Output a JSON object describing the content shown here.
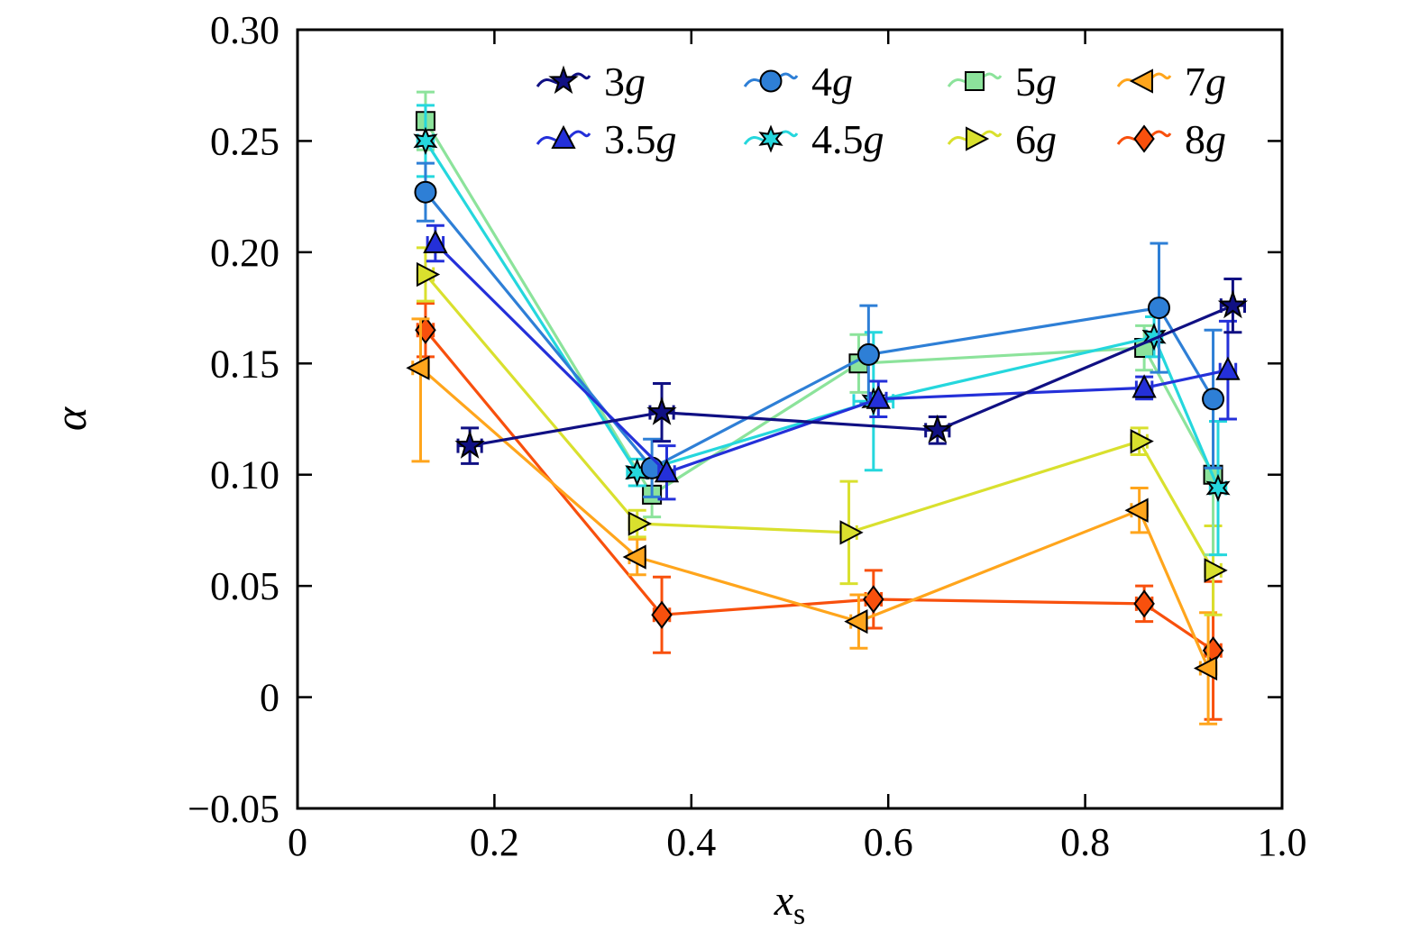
{
  "figure": {
    "background": "#ffffff",
    "frame_color": "#000000"
  },
  "chart_data": {
    "type": "line",
    "title": "",
    "xlabel": {
      "base": "x",
      "subscript": "s"
    },
    "ylabel": "α",
    "xlim": [
      0,
      1.0
    ],
    "ylim": [
      -0.05,
      0.3
    ],
    "grid": false,
    "xticks": {
      "values": [
        0,
        0.2,
        0.4,
        0.6,
        0.8,
        1.0
      ],
      "labels": [
        "0",
        "0.2",
        "0.4",
        "0.6",
        "0.8",
        "1.0"
      ]
    },
    "yticks": {
      "values": [
        -0.05,
        0,
        0.05,
        0.1,
        0.15,
        0.2,
        0.25,
        0.3
      ],
      "labels": [
        "−0.05",
        "0",
        "0.05",
        "0.10",
        "0.15",
        "0.20",
        "0.25",
        "0.30"
      ]
    },
    "legend": {
      "position": "top-inside",
      "rows": [
        [
          "3g",
          "4g",
          "5g",
          "7g"
        ],
        [
          "3.5g",
          "4.5g",
          "6g",
          "8g"
        ]
      ]
    },
    "series": [
      {
        "name": "3g",
        "color": "#101083",
        "marker": "star5",
        "x": [
          0.175,
          0.37,
          0.65,
          0.95
        ],
        "y": [
          0.113,
          0.128,
          0.12,
          0.176
        ],
        "yerr": [
          0.008,
          0.013,
          0.006,
          0.012
        ],
        "xerr": [
          0.012,
          0.012,
          0.012,
          0.012
        ]
      },
      {
        "name": "3.5g",
        "color": "#2430d9",
        "marker": "triangle-up",
        "x": [
          0.14,
          0.375,
          0.59,
          0.86,
          0.945
        ],
        "y": [
          0.204,
          0.101,
          0.134,
          0.139,
          0.147
        ],
        "yerr": [
          0.008,
          0.012,
          0.008,
          0.005,
          0.022
        ],
        "xerr": [
          0.008,
          0.008,
          0.008,
          0.008,
          0.008
        ]
      },
      {
        "name": "4g",
        "color": "#2e7fd6",
        "marker": "circle",
        "x": [
          0.13,
          0.36,
          0.58,
          0.875,
          0.93
        ],
        "y": [
          0.227,
          0.103,
          0.154,
          0.175,
          0.134
        ],
        "yerr": [
          0.013,
          0.013,
          0.022,
          0.029,
          0.031
        ],
        "xerr": [
          0.008,
          0.008,
          0.008,
          0.008,
          0.008
        ]
      },
      {
        "name": "4.5g",
        "color": "#25d7dd",
        "marker": "star6",
        "x": [
          0.13,
          0.345,
          0.585,
          0.87,
          0.935
        ],
        "y": [
          0.25,
          0.101,
          0.133,
          0.162,
          0.094
        ],
        "yerr": [
          0.016,
          0.006,
          0.031,
          0.009,
          0.03
        ],
        "xerr": [
          0.008,
          0.01,
          0.02,
          0.008,
          0.008
        ]
      },
      {
        "name": "5g",
        "color": "#8ce39b",
        "marker": "square",
        "x": [
          0.13,
          0.36,
          0.57,
          0.86,
          0.93
        ],
        "y": [
          0.259,
          0.091,
          0.15,
          0.157,
          0.1
        ],
        "yerr": [
          0.013,
          0.01,
          0.013,
          0.01,
          0.036
        ],
        "xerr": [
          0.008,
          0.008,
          0.008,
          0.008,
          0.008
        ]
      },
      {
        "name": "6g",
        "color": "#d9e02e",
        "marker": "triangle-right",
        "x": [
          0.13,
          0.345,
          0.56,
          0.855,
          0.93
        ],
        "y": [
          0.19,
          0.078,
          0.074,
          0.115,
          0.057
        ],
        "yerr": [
          0.012,
          0.006,
          0.023,
          0.006,
          0.02
        ],
        "xerr": [
          0.008,
          0.008,
          0.008,
          0.008,
          0.008
        ]
      },
      {
        "name": "7g",
        "color": "#ffa51c",
        "marker": "triangle-left",
        "x": [
          0.125,
          0.345,
          0.57,
          0.855,
          0.925
        ],
        "y": [
          0.148,
          0.063,
          0.034,
          0.084,
          0.013
        ],
        "yerr": [
          [
            0.042,
            0.022
          ],
          0.008,
          0.012,
          0.01,
          0.025
        ],
        "xerr": [
          0.008,
          0.008,
          0.008,
          0.008,
          0.008
        ]
      },
      {
        "name": "8g",
        "color": "#f8500d",
        "marker": "diamond",
        "x": [
          0.13,
          0.37,
          0.585,
          0.86,
          0.93
        ],
        "y": [
          0.165,
          0.037,
          0.044,
          0.042,
          0.021
        ],
        "yerr": [
          0.012,
          0.017,
          0.013,
          0.008,
          0.031
        ],
        "xerr": [
          0.008,
          0.008,
          0.008,
          0.008,
          0.008
        ]
      }
    ]
  }
}
